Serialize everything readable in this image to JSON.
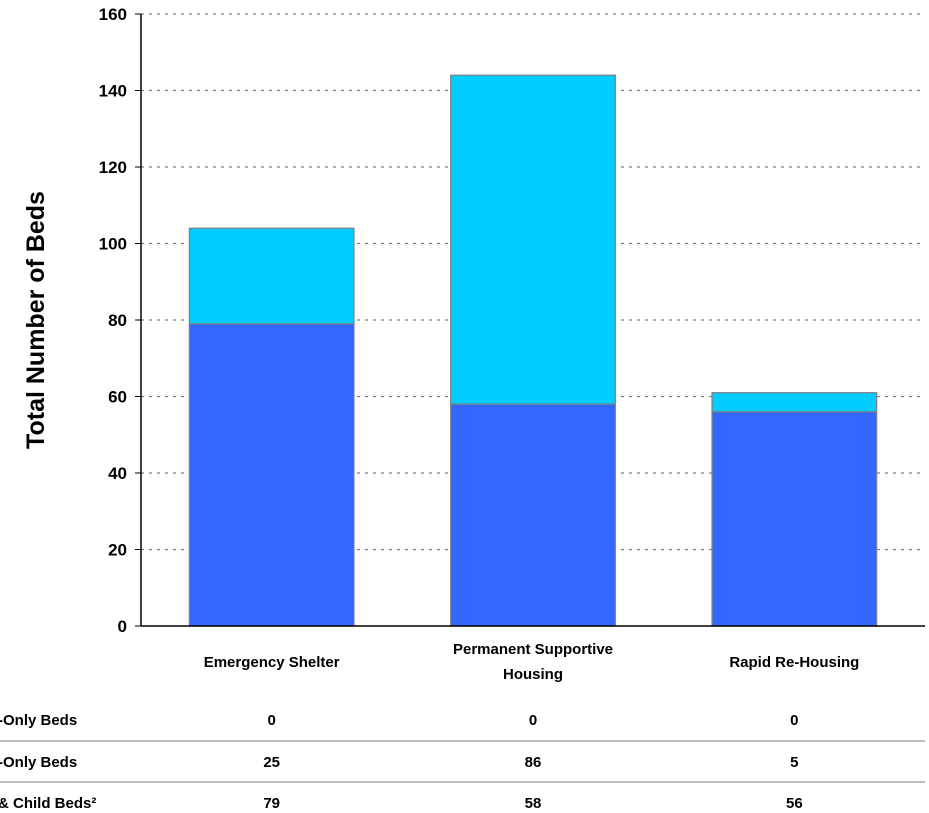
{
  "chart_data": {
    "type": "bar",
    "stacked": true,
    "ylabel": "Total Number of Beds",
    "ylim": [
      0,
      160
    ],
    "yticks": [
      0,
      20,
      40,
      60,
      80,
      100,
      120,
      140,
      160
    ],
    "grid": "horizontal-dotted",
    "categories": [
      [
        "Emergency Shelter"
      ],
      [
        "Permanent Supportive",
        "Housing"
      ],
      [
        "Rapid Re-Housing"
      ]
    ],
    "series": [
      {
        "name": "-Only Beds",
        "color": "#3366ff",
        "values": [
          79,
          58,
          56
        ]
      },
      {
        "name": "-Only Beds",
        "color": "#00ccff",
        "values": [
          25,
          86,
          5
        ]
      }
    ],
    "table": {
      "rows": [
        {
          "label": "-Only Beds",
          "values": [
            "0",
            "0",
            "0"
          ]
        },
        {
          "label": "-Only Beds",
          "values": [
            "25",
            "86",
            "5"
          ]
        },
        {
          "label": "& Child Beds²",
          "values": [
            "79",
            "58",
            "56"
          ]
        }
      ]
    }
  }
}
